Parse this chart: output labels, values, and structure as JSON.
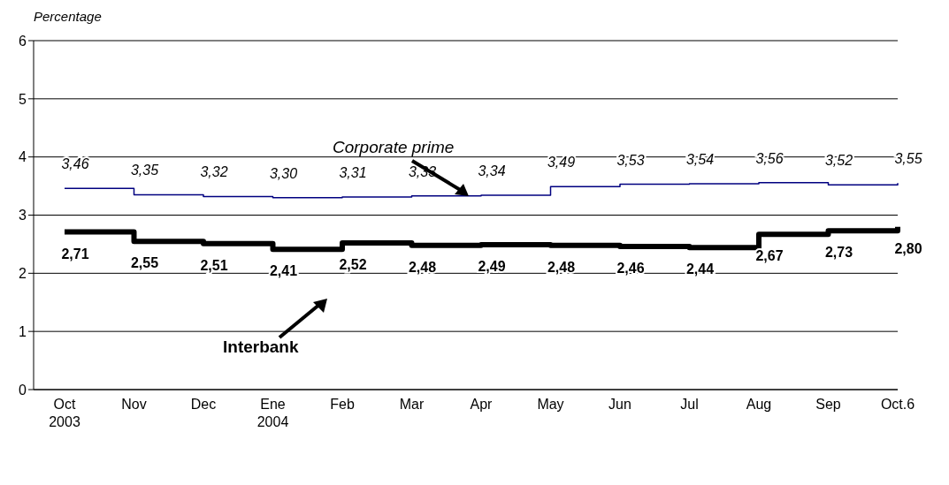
{
  "chart_data": {
    "type": "step",
    "ylabel": "Percentage",
    "categories": [
      "Oct\n2003",
      "Nov",
      "Dec",
      "Ene\n2004",
      "Feb",
      "Mar",
      "Apr",
      "May",
      "Jun",
      "Jul",
      "Aug",
      "Sep",
      "Oct.6"
    ],
    "series": [
      {
        "name": "Corporate prime",
        "color": "#000080",
        "values": [
          3.46,
          3.35,
          3.32,
          3.3,
          3.31,
          3.33,
          3.34,
          3.49,
          3.53,
          3.54,
          3.56,
          3.52,
          3.55
        ],
        "value_labels": [
          "3,46",
          "3,35",
          "3,32",
          "3,30",
          "3,31",
          "3,33",
          "3,34",
          "3,49",
          "3,53",
          "3,54",
          "3,56",
          "3,52",
          "3,55"
        ]
      },
      {
        "name": "Interbank",
        "color": "#000000",
        "values": [
          2.71,
          2.55,
          2.51,
          2.41,
          2.52,
          2.48,
          2.49,
          2.48,
          2.46,
          2.44,
          2.67,
          2.73,
          2.8
        ],
        "value_labels": [
          "2,71",
          "2,55",
          "2,51",
          "2,41",
          "2,52",
          "2,48",
          "2,49",
          "2,48",
          "2,46",
          "2,44",
          "2,67",
          "2,73",
          "2,80"
        ]
      }
    ],
    "ylim": [
      0,
      6
    ],
    "yticks": [
      0,
      1,
      2,
      3,
      4,
      5,
      6
    ],
    "grid": "y"
  }
}
